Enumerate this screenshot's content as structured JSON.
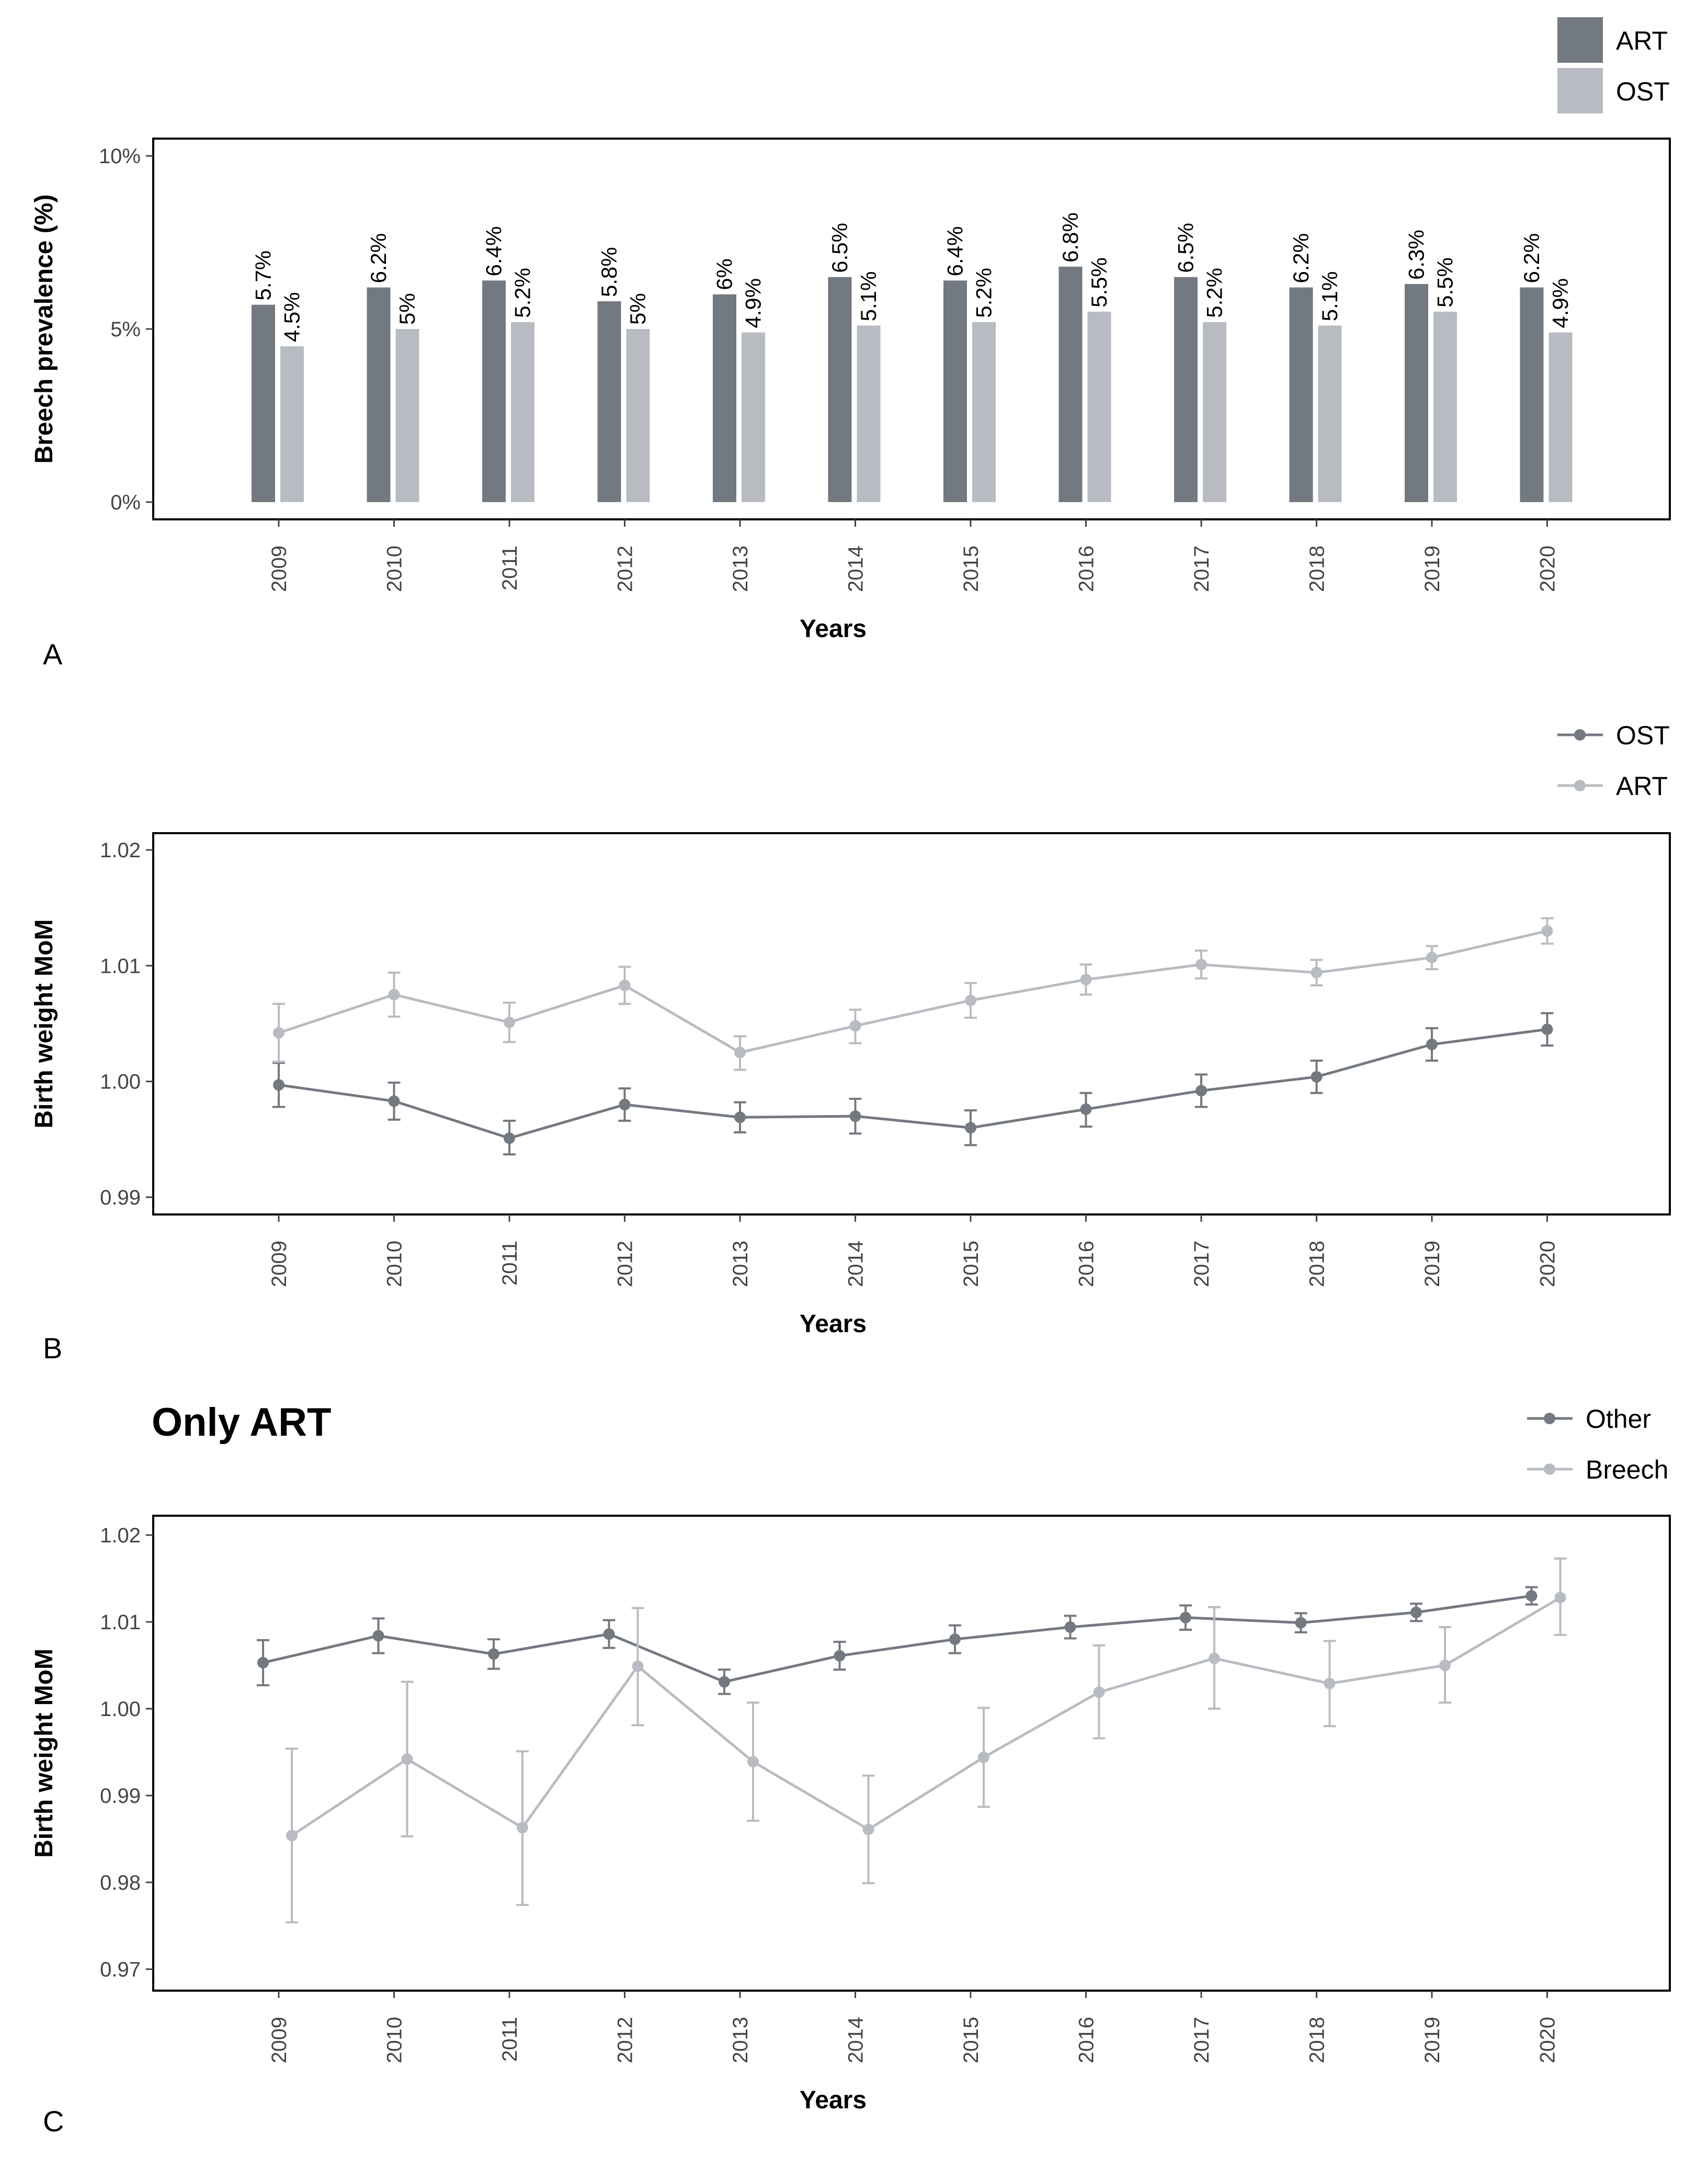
{
  "colors": {
    "dark": "#737980",
    "light": "#b8bcc2"
  },
  "chart_data": [
    {
      "panel": "A",
      "type": "bar",
      "title": "",
      "xlabel": "Years",
      "ylabel": "Breech prevalence (%)",
      "categories": [
        "2009",
        "2010",
        "2011",
        "2012",
        "2013",
        "2014",
        "2015",
        "2016",
        "2017",
        "2018",
        "2019",
        "2020"
      ],
      "ylim": [
        0,
        10
      ],
      "yticks": [
        0,
        5,
        10
      ],
      "ytick_labels": [
        "0%",
        "5%",
        "10%"
      ],
      "legend_position": "top-right",
      "series": [
        {
          "name": "ART",
          "color": "#737980",
          "values": [
            5.7,
            6.2,
            6.4,
            5.8,
            6.0,
            6.5,
            6.4,
            6.8,
            6.5,
            6.2,
            6.3,
            6.2
          ],
          "labels": [
            "5.7%",
            "6.2%",
            "6.4%",
            "5.8%",
            "6%",
            "6.5%",
            "6.4%",
            "6.8%",
            "6.5%",
            "6.2%",
            "6.3%",
            "6.2%"
          ]
        },
        {
          "name": "OST",
          "color": "#b8bcc2",
          "values": [
            4.5,
            5.0,
            5.2,
            5.0,
            4.9,
            5.1,
            5.2,
            5.5,
            5.2,
            5.1,
            5.5,
            4.9
          ],
          "labels": [
            "4.5%",
            "5%",
            "5.2%",
            "5%",
            "4.9%",
            "5.1%",
            "5.2%",
            "5.5%",
            "5.2%",
            "5.1%",
            "5.5%",
            "4.9%"
          ]
        }
      ]
    },
    {
      "panel": "B",
      "type": "line",
      "title": "",
      "xlabel": "Years",
      "ylabel": "Birth weight MoM",
      "categories": [
        "2009",
        "2010",
        "2011",
        "2012",
        "2013",
        "2014",
        "2015",
        "2016",
        "2017",
        "2018",
        "2019",
        "2020"
      ],
      "ylim": [
        0.988,
        1.022
      ],
      "yticks": [
        0.99,
        1.0,
        1.01,
        1.02
      ],
      "ytick_labels": [
        "0.99",
        "1.00",
        "1.01",
        "1.02"
      ],
      "legend_position": "top-right",
      "series": [
        {
          "name": "OST",
          "color": "#737980",
          "values": [
            0.9997,
            0.9983,
            0.9951,
            0.998,
            0.9969,
            0.997,
            0.996,
            0.9976,
            0.9992,
            1.0004,
            1.0032,
            1.0045
          ],
          "lower": [
            0.9978,
            0.9967,
            0.9937,
            0.9966,
            0.9956,
            0.9955,
            0.9945,
            0.9961,
            0.9978,
            0.999,
            1.0018,
            1.0031
          ],
          "upper": [
            1.0016,
            0.9999,
            0.9966,
            0.9994,
            0.9982,
            0.9985,
            0.9975,
            0.999,
            1.0006,
            1.0018,
            1.0046,
            1.0059
          ]
        },
        {
          "name": "ART",
          "color": "#b8bcc2",
          "values": [
            1.0042,
            1.0075,
            1.0051,
            1.0083,
            1.0025,
            1.0048,
            1.007,
            1.0088,
            1.0101,
            1.0094,
            1.0107,
            1.013
          ],
          "lower": [
            1.0017,
            1.0056,
            1.0034,
            1.0067,
            1.001,
            1.0033,
            1.0055,
            1.0075,
            1.0089,
            1.0083,
            1.0097,
            1.0119
          ],
          "upper": [
            1.0067,
            1.0094,
            1.0068,
            1.0099,
            1.0039,
            1.0062,
            1.0085,
            1.0101,
            1.0113,
            1.0105,
            1.0117,
            1.0141
          ]
        }
      ]
    },
    {
      "panel": "C",
      "type": "line",
      "title": "Only ART",
      "xlabel": "Years",
      "ylabel": "Birth weight MoM",
      "categories": [
        "2009",
        "2010",
        "2011",
        "2012",
        "2013",
        "2014",
        "2015",
        "2016",
        "2017",
        "2018",
        "2019",
        "2020"
      ],
      "ylim": [
        0.968,
        1.022
      ],
      "yticks": [
        0.97,
        0.98,
        0.99,
        1.0,
        1.01,
        1.02
      ],
      "ytick_labels": [
        "0.97",
        "0.98",
        "0.99",
        "1.00",
        "1.01",
        "1.02"
      ],
      "legend_position": "top-right",
      "series": [
        {
          "name": "Other",
          "color": "#737980",
          "values": [
            1.0053,
            1.0084,
            1.0063,
            1.0086,
            1.0031,
            1.0061,
            1.008,
            1.0094,
            1.0105,
            1.0099,
            1.0111,
            1.013
          ],
          "lower": [
            1.0027,
            1.0064,
            1.0046,
            1.007,
            1.0017,
            1.0045,
            1.0064,
            1.0081,
            1.0091,
            1.0088,
            1.0101,
            1.012
          ],
          "upper": [
            1.0079,
            1.0104,
            1.008,
            1.0102,
            1.0045,
            1.0077,
            1.0096,
            1.0107,
            1.0119,
            1.011,
            1.0121,
            1.014
          ]
        },
        {
          "name": "Breech",
          "color": "#b8bcc2",
          "values": [
            0.9854,
            0.9942,
            0.9863,
            1.0049,
            0.9939,
            0.9861,
            0.9944,
            1.0019,
            1.0058,
            1.0029,
            1.005,
            1.0128
          ],
          "lower": [
            0.9754,
            0.9853,
            0.9774,
            0.9981,
            0.9871,
            0.9799,
            0.9887,
            0.9966,
            1.0,
            0.998,
            1.0007,
            1.0085
          ],
          "upper": [
            0.9954,
            1.0031,
            0.9951,
            1.0116,
            1.0007,
            0.9923,
            1.0001,
            1.0073,
            1.0117,
            1.0078,
            1.0094,
            1.0173
          ]
        }
      ]
    }
  ],
  "panel_letters": [
    "A",
    "B",
    "C"
  ]
}
